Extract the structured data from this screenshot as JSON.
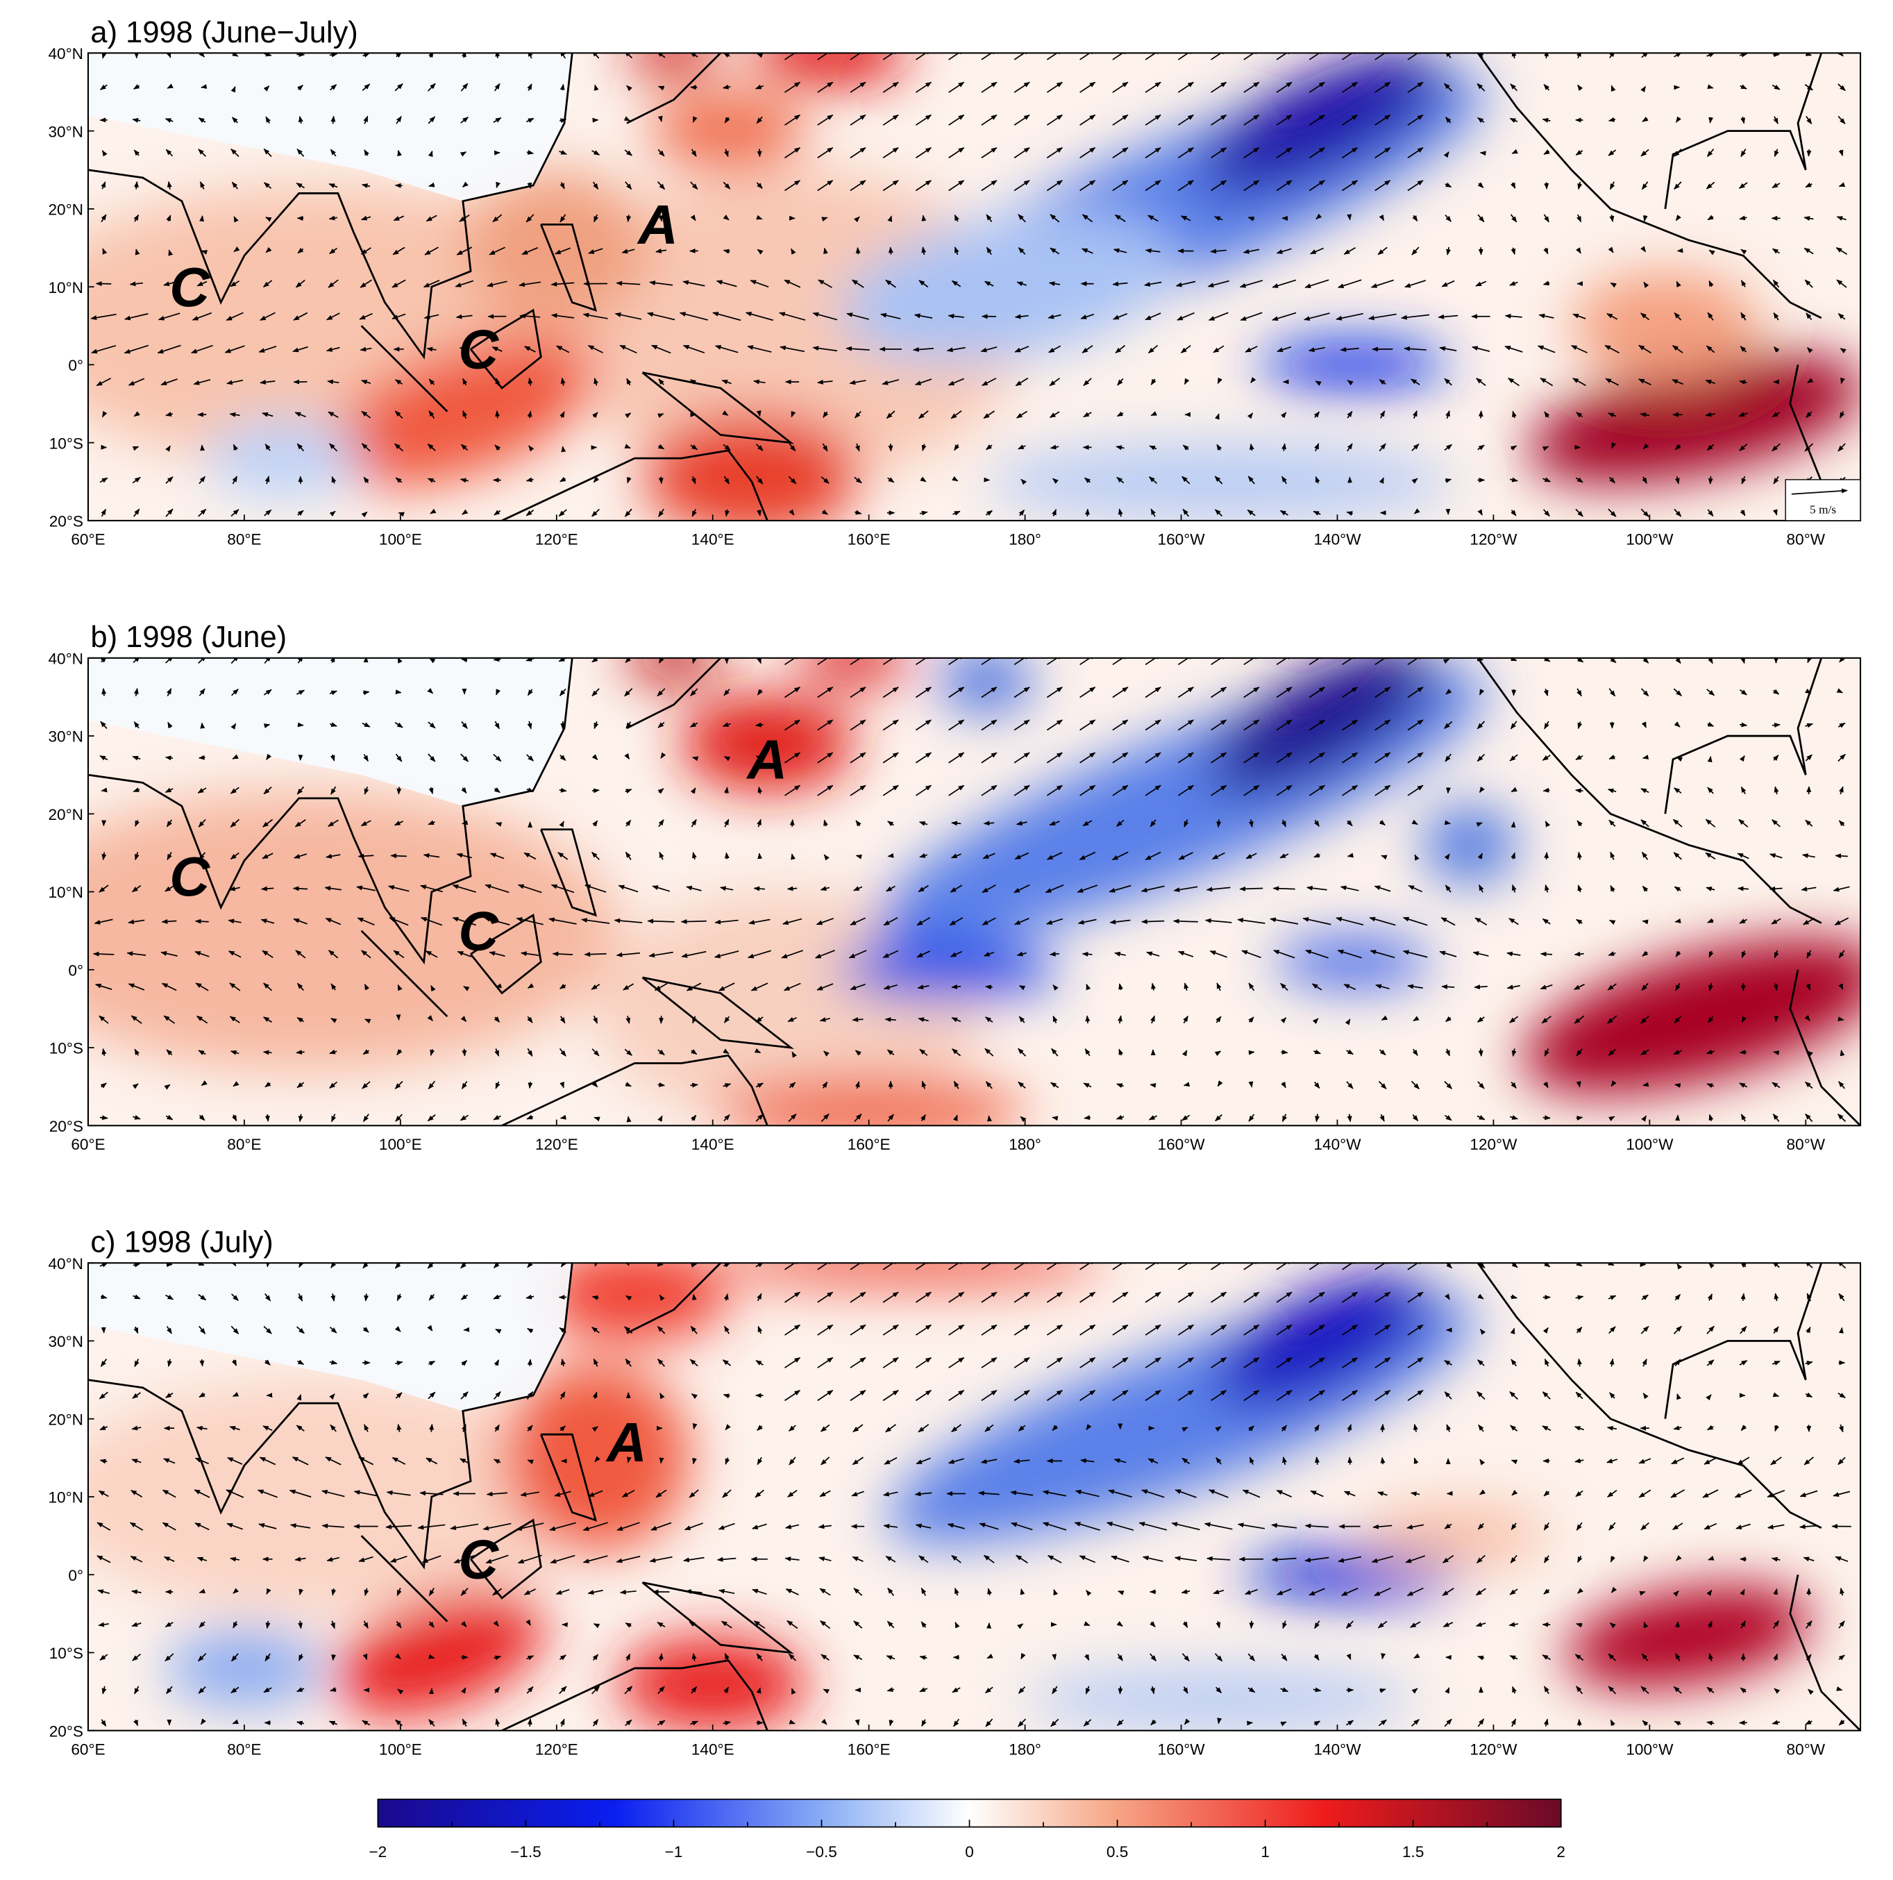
{
  "panels": [
    {
      "title": "a) 1998 (June−July)",
      "labels": [
        "C",
        "C",
        "A"
      ]
    },
    {
      "title": "b) 1998 (June)",
      "labels": [
        "C",
        "C",
        "A"
      ]
    },
    {
      "title": "c) 1998 (July)",
      "labels": [
        "C",
        "A"
      ]
    }
  ],
  "vector_key": "5 m/s",
  "lon_ticks": [
    {
      "value": 60,
      "label": "60°E"
    },
    {
      "value": 80,
      "label": "80°E"
    },
    {
      "value": 100,
      "label": "100°E"
    },
    {
      "value": 120,
      "label": "120°E"
    },
    {
      "value": 140,
      "label": "140°E"
    },
    {
      "value": 160,
      "label": "160°E"
    },
    {
      "value": 180,
      "label": "180°"
    },
    {
      "value": 200,
      "label": "160°W"
    },
    {
      "value": 220,
      "label": "140°W"
    },
    {
      "value": 240,
      "label": "120°W"
    },
    {
      "value": 260,
      "label": "100°W"
    },
    {
      "value": 280,
      "label": "80°W"
    }
  ],
  "lat_ticks": [
    {
      "value": 40,
      "label": "40°N"
    },
    {
      "value": 30,
      "label": "30°N"
    },
    {
      "value": 20,
      "label": "20°N"
    },
    {
      "value": 10,
      "label": "10°N"
    },
    {
      "value": 0,
      "label": "0°"
    },
    {
      "value": -10,
      "label": "10°S"
    },
    {
      "value": -20,
      "label": "20°S"
    }
  ],
  "lon_range": [
    60,
    287
  ],
  "lat_range": [
    -20,
    40
  ],
  "colorbar": {
    "range": [
      -2,
      2
    ],
    "ticks": [
      {
        "value": -2,
        "label": "−2"
      },
      {
        "value": -1.5,
        "label": "−1.5"
      },
      {
        "value": -1,
        "label": "−1"
      },
      {
        "value": -0.5,
        "label": "−0.5"
      },
      0,
      0.5,
      1,
      1.5,
      2
    ],
    "minor_ticks": [
      -1.75,
      -1.25,
      -0.75,
      -0.25,
      0.25,
      0.75,
      1.25,
      1.75
    ]
  }
}
